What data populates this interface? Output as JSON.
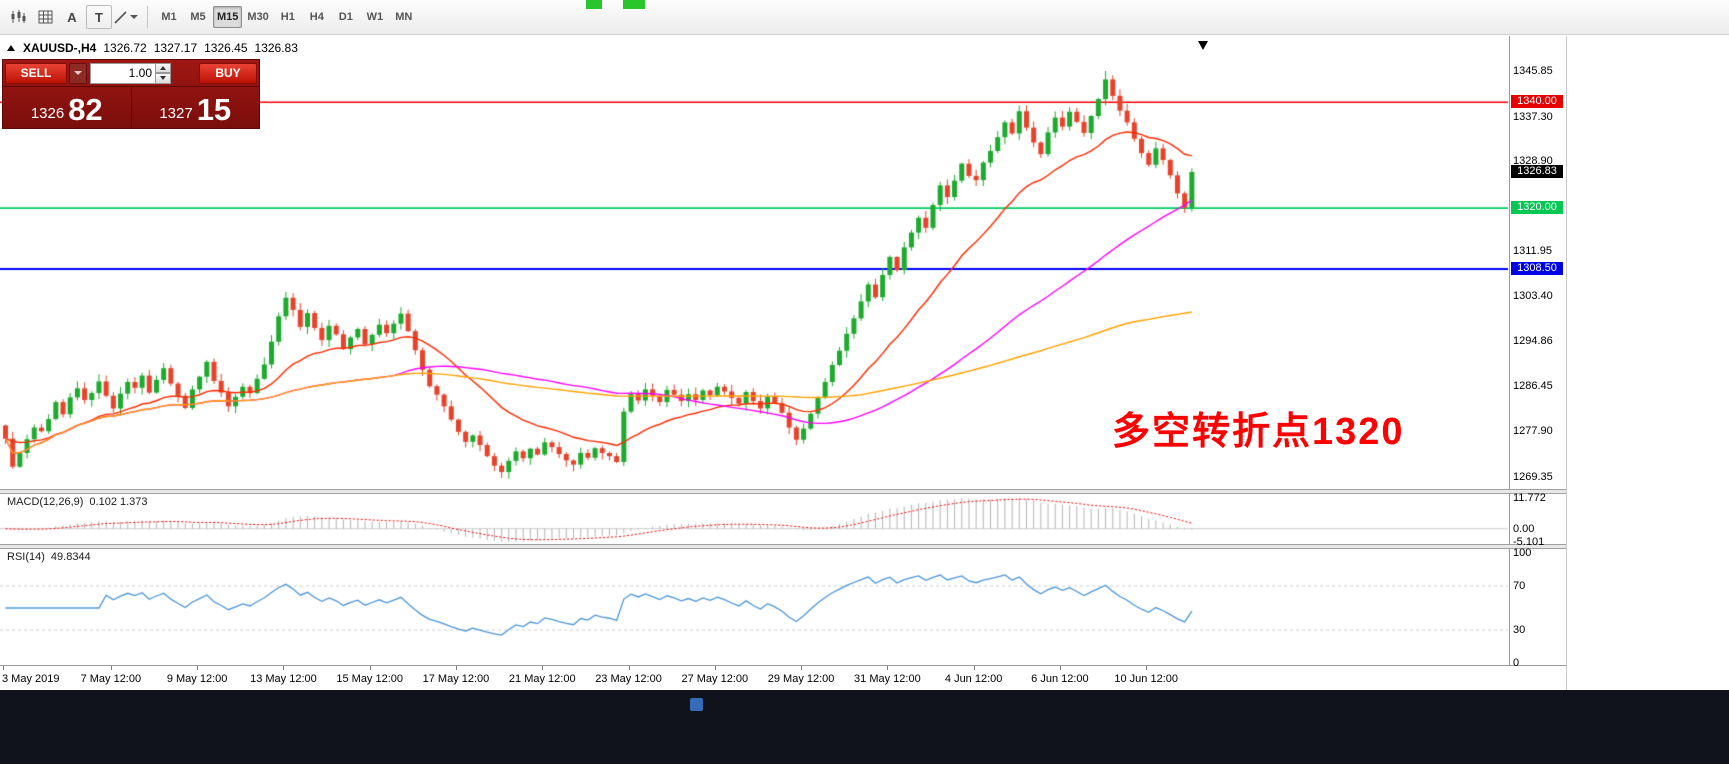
{
  "toolbar": {
    "icons": [
      {
        "name": "chart-type-icon"
      },
      {
        "name": "grid-icon"
      },
      {
        "name": "cursor-a-icon",
        "label": "A"
      },
      {
        "name": "text-tool-icon",
        "label": "T"
      },
      {
        "name": "draw-tools-icon"
      }
    ],
    "timeframes": [
      {
        "label": "M1",
        "active": false
      },
      {
        "label": "M5",
        "active": false
      },
      {
        "label": "M15",
        "active": true
      },
      {
        "label": "M30",
        "active": false
      },
      {
        "label": "H1",
        "active": false
      },
      {
        "label": "H4",
        "active": false
      },
      {
        "label": "D1",
        "active": false
      },
      {
        "label": "W1",
        "active": false
      },
      {
        "label": "MN",
        "active": false
      }
    ]
  },
  "chart_header": {
    "symbol": "XAUUSD-,H4",
    "open": "1326.72",
    "high": "1327.17",
    "low": "1326.45",
    "close": "1326.83"
  },
  "trade_panel": {
    "sell_label": "SELL",
    "buy_label": "BUY",
    "volume": "1.00",
    "sell_price_small": "1326",
    "sell_price_big": "82",
    "buy_price_small": "1327",
    "buy_price_big": "15"
  },
  "annotation": {
    "text": "多空转折点1320",
    "color": "#ff0000"
  },
  "price_axis": {
    "plain": [
      {
        "text": "1345.85",
        "value": 1345.85
      },
      {
        "text": "1337.30",
        "value": 1337.3
      },
      {
        "text": "1328.90",
        "value": 1328.9
      },
      {
        "text": "1311.95",
        "value": 1311.95
      },
      {
        "text": "1303.40",
        "value": 1303.4
      },
      {
        "text": "1294.86",
        "value": 1294.86
      },
      {
        "text": "1286.45",
        "value": 1286.45
      },
      {
        "text": "1277.90",
        "value": 1277.9
      },
      {
        "text": "1269.35",
        "value": 1269.35
      }
    ],
    "badges": [
      {
        "text": "1340.00",
        "value": 1340.0,
        "bg": "#e60000"
      },
      {
        "text": "1326.83",
        "value": 1326.83,
        "bg": "#000000"
      },
      {
        "text": "1320.00",
        "value": 1320.0,
        "bg": "#00c853"
      },
      {
        "text": "1308.50",
        "value": 1308.5,
        "bg": "#0000e6"
      }
    ]
  },
  "macd_panel": {
    "label": "MACD(12,26,9)",
    "values": "0.102 1.373",
    "axis": [
      {
        "text": "11.772",
        "value": 11.772
      },
      {
        "text": "0.00",
        "value": 0
      },
      {
        "text": "-5.101",
        "value": -5.101
      }
    ]
  },
  "rsi_panel": {
    "label": "RSI(14)",
    "value": "49.8344",
    "axis": [
      {
        "text": "100",
        "value": 100
      },
      {
        "text": "70",
        "value": 70
      },
      {
        "text": "30",
        "value": 30
      },
      {
        "text": "0",
        "value": 0
      }
    ]
  },
  "chart_data": {
    "type": "candlestick",
    "symbol": "XAUUSD",
    "timeframe": "H4",
    "title": "XAUUSD-,H4",
    "price_range": [
      1267.0,
      1352.5
    ],
    "first_open": 1279.0,
    "closes": [
      1276.5,
      1271.2,
      1273.8,
      1276.4,
      1278.6,
      1277.9,
      1280.2,
      1283.4,
      1281.1,
      1284.3,
      1286.0,
      1283.8,
      1285.1,
      1287.3,
      1284.6,
      1282.2,
      1285.0,
      1287.2,
      1286.1,
      1288.4,
      1285.2,
      1287.6,
      1289.8,
      1286.9,
      1284.6,
      1282.3,
      1285.8,
      1288.2,
      1291.0,
      1287.4,
      1285.2,
      1282.6,
      1284.4,
      1286.3,
      1285.1,
      1287.8,
      1290.5,
      1294.8,
      1299.6,
      1303.1,
      1300.8,
      1297.6,
      1300.2,
      1297.4,
      1295.1,
      1297.8,
      1296.2,
      1293.4,
      1295.6,
      1297.2,
      1294.3,
      1296.1,
      1298.0,
      1296.4,
      1298.2,
      1300.1,
      1296.8,
      1293.2,
      1289.5,
      1286.4,
      1284.8,
      1282.6,
      1280.1,
      1277.8,
      1275.9,
      1277.1,
      1275.3,
      1273.2,
      1271.4,
      1270.2,
      1272.3,
      1274.1,
      1272.8,
      1274.6,
      1273.5,
      1275.8,
      1274.9,
      1273.6,
      1272.4,
      1271.6,
      1273.8,
      1272.9,
      1274.7,
      1273.8,
      1273.2,
      1272.1,
      1281.6,
      1284.9,
      1283.7,
      1285.8,
      1284.6,
      1283.4,
      1285.7,
      1284.8,
      1283.6,
      1284.9,
      1283.8,
      1285.6,
      1284.7,
      1286.3,
      1285.4,
      1284.2,
      1283.1,
      1285.3,
      1283.6,
      1282.2,
      1284.4,
      1283.2,
      1281.4,
      1278.6,
      1276.3,
      1278.4,
      1281.2,
      1284.3,
      1287.2,
      1290.4,
      1293.1,
      1296.3,
      1299.2,
      1302.4,
      1305.6,
      1303.2,
      1307.4,
      1310.8,
      1308.3,
      1312.6,
      1315.4,
      1318.2,
      1316.3,
      1320.6,
      1324.3,
      1322.1,
      1325.2,
      1328.4,
      1326.1,
      1325.3,
      1328.6,
      1330.8,
      1333.4,
      1336.2,
      1334.1,
      1338.3,
      1335.2,
      1332.4,
      1330.2,
      1334.3,
      1337.1,
      1335.4,
      1338.2,
      1336.3,
      1334.2,
      1337.4,
      1340.6,
      1344.3,
      1341.2,
      1338.4,
      1336.2,
      1333.1,
      1330.4,
      1328.2,
      1331.3,
      1329.1,
      1326.2,
      1322.8,
      1320.1,
      1326.83
    ],
    "current": {
      "open": 1326.72,
      "high": 1327.17,
      "low": 1326.45,
      "close": 1326.83
    },
    "colors": {
      "up": "#1cab2e",
      "down": "#e8432a"
    },
    "hlines": [
      {
        "value": 1340.0,
        "color": "#ff0000",
        "width": 1.4
      },
      {
        "value": 1320.0,
        "color": "#00cc66",
        "width": 1.8
      },
      {
        "value": 1308.5,
        "color": "#0000ff",
        "width": 2
      }
    ],
    "moving_averages": [
      {
        "period": 20,
        "method": "ema",
        "color": "#ff2a00"
      },
      {
        "period": 55,
        "method": "sma",
        "color": "#ff00ff"
      },
      {
        "period": 120,
        "method": "sma",
        "color": "#ffa200"
      }
    ],
    "indicators": {
      "macd": {
        "params": [
          12,
          26,
          9
        ],
        "display_values": [
          0.102,
          1.373
        ],
        "axis_range": [
          -5.101,
          11.772
        ],
        "histogram_color": "#b4b4b4",
        "signal_color": "#ff0000"
      },
      "rsi": {
        "period": 14,
        "value": 49.8344,
        "levels": [
          30,
          70
        ],
        "color": "#4d96d9"
      }
    },
    "time_ticks": [
      {
        "label": "3 May 2019",
        "index": 0
      },
      {
        "label": "7 May 12:00",
        "index": 15
      },
      {
        "label": "9 May 12:00",
        "index": 27
      },
      {
        "label": "13 May 12:00",
        "index": 39
      },
      {
        "label": "15 May 12:00",
        "index": 51
      },
      {
        "label": "17 May 12:00",
        "index": 63
      },
      {
        "label": "21 May 12:00",
        "index": 75
      },
      {
        "label": "23 May 12:00",
        "index": 87
      },
      {
        "label": "27 May 12:00",
        "index": 99
      },
      {
        "label": "29 May 12:00",
        "index": 111
      },
      {
        "label": "31 May 12:00",
        "index": 123
      },
      {
        "label": "4 Jun 12:00",
        "index": 135
      },
      {
        "label": "6 Jun 12:00",
        "index": 147
      },
      {
        "label": "10 Jun 12:00",
        "index": 159
      }
    ]
  }
}
